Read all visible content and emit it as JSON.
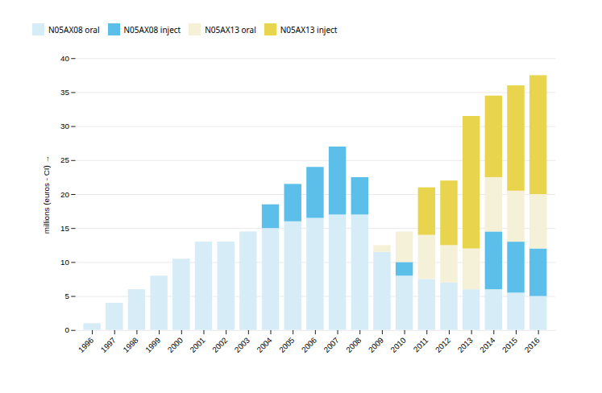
{
  "chart_data": {
    "type": "bar",
    "stacked": true,
    "ylabel": "millions (euros - CI)",
    "categories": [
      "1996",
      "1997",
      "1998",
      "1999",
      "2000",
      "2001",
      "2002",
      "2003",
      "2004",
      "2005",
      "2006",
      "2007",
      "2008",
      "2009",
      "2010",
      "2011",
      "2012",
      "2013",
      "2014",
      "2015",
      "2016"
    ],
    "series": [
      {
        "name": "N05AX08 oral",
        "color": "#d6ecf7",
        "values": [
          1.0,
          4.0,
          6.0,
          8.0,
          10.5,
          13.0,
          13.0,
          14.5,
          15.0,
          16.0,
          16.5,
          17.0,
          17.0,
          11.5,
          8.0,
          7.5,
          7.0,
          6.0,
          6.0,
          5.5,
          5.0
        ]
      },
      {
        "name": "N05AX08 inject",
        "color": "#5bbfea",
        "values": [
          0.0,
          0.0,
          0.0,
          0.0,
          0.0,
          0.0,
          0.0,
          0.0,
          3.5,
          5.5,
          7.5,
          10.0,
          5.5,
          0.0,
          2.0,
          0.0,
          0.0,
          0.0,
          8.5,
          7.5,
          7.0
        ]
      },
      {
        "name": "N05AX13 oral",
        "color": "#f5f0d8",
        "values": [
          0.0,
          0.0,
          0.0,
          0.0,
          0.0,
          0.0,
          0.0,
          0.0,
          0.0,
          0.0,
          0.0,
          0.0,
          0.0,
          1.0,
          4.5,
          6.5,
          5.5,
          6.0,
          8.0,
          7.5,
          8.0
        ]
      },
      {
        "name": "N05AX13 inject",
        "color": "#e8d44d",
        "values": [
          0.0,
          0.0,
          0.0,
          0.0,
          0.0,
          0.0,
          0.0,
          0.0,
          0.0,
          0.0,
          0.0,
          0.0,
          0.0,
          0.0,
          0.0,
          7.0,
          9.5,
          19.5,
          12.0,
          15.5,
          17.5
        ]
      }
    ],
    "ylim": [
      0,
      40
    ],
    "yticks": [
      0,
      5,
      10,
      15,
      20,
      25,
      30,
      35,
      40
    ],
    "grid": true,
    "legend": "upper left"
  }
}
